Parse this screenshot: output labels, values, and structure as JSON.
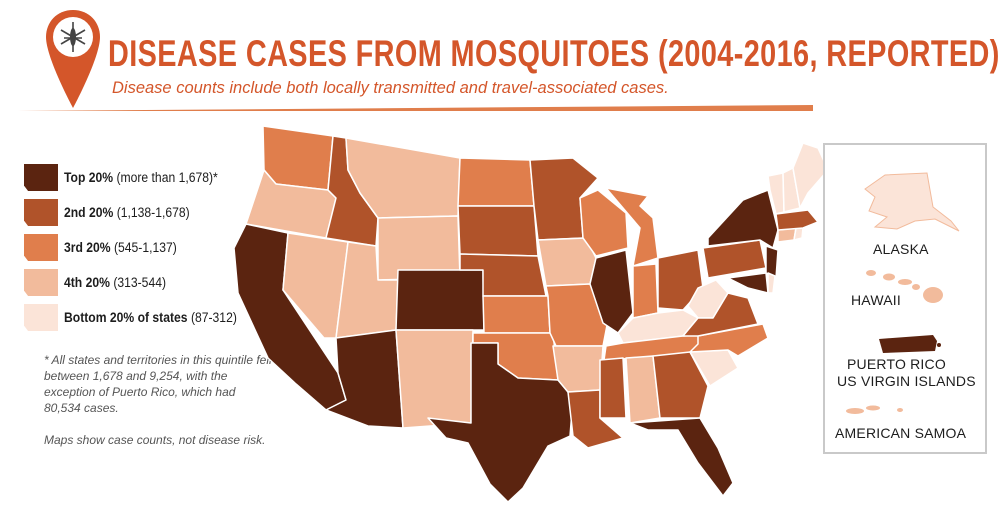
{
  "header": {
    "title": "DISEASE CASES FROM MOSQUITOES (2004-2016, REPORTED)",
    "subtitle": "Disease counts include both locally transmitted and travel-associated cases.",
    "icon": "mosquito-pin-icon"
  },
  "colors": {
    "top20": "#5b2410",
    "second20": "#b0532a",
    "third20": "#e07e4c",
    "fourth20": "#f2bb9c",
    "bottom20": "#fbe4d8",
    "accent": "#d4562a"
  },
  "legend": {
    "items": [
      {
        "name": "Top 20%",
        "range": "(more than 1,678)*"
      },
      {
        "name": "2nd 20%",
        "range": "(1,138-1,678)"
      },
      {
        "name": "3rd 20%",
        "range": "(545-1,137)"
      },
      {
        "name": "4th 20%",
        "range": "(313-544)"
      },
      {
        "name": "Bottom 20% of states",
        "range": "(87-312)"
      }
    ]
  },
  "notes": {
    "footnote": "* All states and territories in this quintile fell between 1,678 and 9,254, with the exception of Puerto Rico, which had 80,534 cases.",
    "disclaimer": "Maps show case counts, not disease risk."
  },
  "insets": {
    "alaska": "ALASKA",
    "hawaii": "HAWAII",
    "puerto_rico": "PUERTO RICO",
    "virgin_islands": "US VIRGIN ISLANDS",
    "samoa": "AMERICAN SAMOA"
  }
}
